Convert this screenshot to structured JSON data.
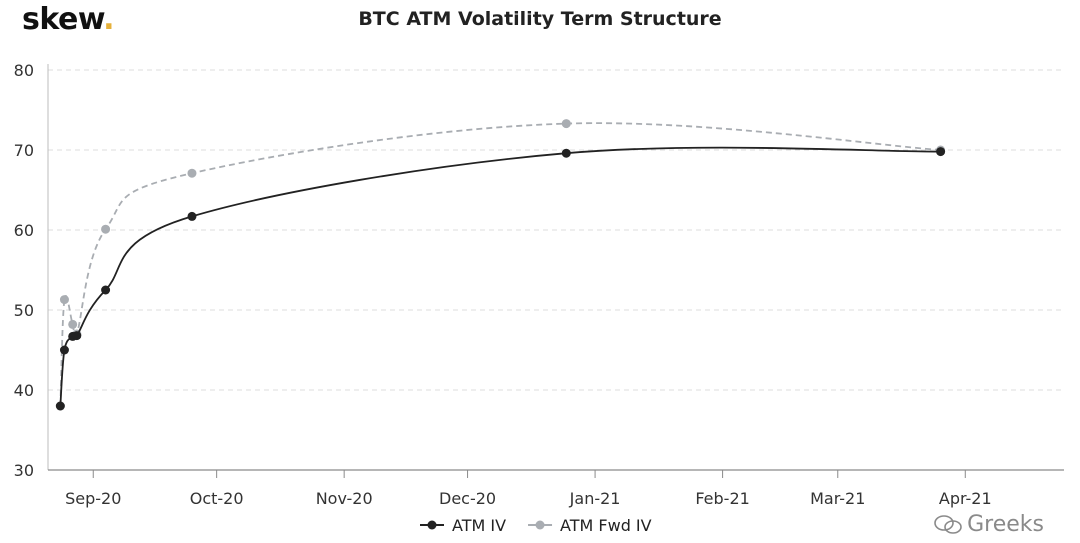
{
  "logo": {
    "text": "skew",
    "dot": "."
  },
  "watermark": "Greeks",
  "chart_data": {
    "type": "line",
    "title": "BTC ATM Volatility Term Structure",
    "xlabel": "",
    "ylabel": "",
    "ylim": [
      30,
      80
    ],
    "yticks": [
      30,
      40,
      50,
      60,
      70,
      80
    ],
    "xlim": [
      "2020-08-21",
      "2021-04-25"
    ],
    "xticks": [
      {
        "date": "2020-09-01",
        "label": "Sep-20"
      },
      {
        "date": "2020-10-01",
        "label": "Oct-20"
      },
      {
        "date": "2020-11-01",
        "label": "Nov-20"
      },
      {
        "date": "2020-12-01",
        "label": "Dec-20"
      },
      {
        "date": "2021-01-01",
        "label": "Jan-21"
      },
      {
        "date": "2021-02-01",
        "label": "Feb-21"
      },
      {
        "date": "2021-03-01",
        "label": "Mar-21"
      },
      {
        "date": "2021-04-01",
        "label": "Apr-21"
      }
    ],
    "grid": true,
    "legend_position": "bottom-center",
    "series": [
      {
        "name": "ATM IV",
        "color": "#222222",
        "dashed": false,
        "x": [
          "2020-08-24",
          "2020-08-25",
          "2020-08-27",
          "2020-08-28",
          "2020-09-04",
          "2020-09-25",
          "2020-12-25",
          "2021-03-26"
        ],
        "values": [
          38.0,
          45.0,
          46.7,
          46.8,
          52.5,
          61.7,
          69.6,
          69.8
        ]
      },
      {
        "name": "ATM Fwd IV",
        "color": "#a9adb2",
        "dashed": true,
        "x": [
          "2020-08-24",
          "2020-08-25",
          "2020-08-27",
          "2020-08-28",
          "2020-09-04",
          "2020-09-25",
          "2020-12-25",
          "2021-03-26"
        ],
        "values": [
          38.0,
          51.3,
          48.2,
          47.0,
          60.1,
          67.1,
          73.3,
          70.0
        ]
      }
    ]
  }
}
